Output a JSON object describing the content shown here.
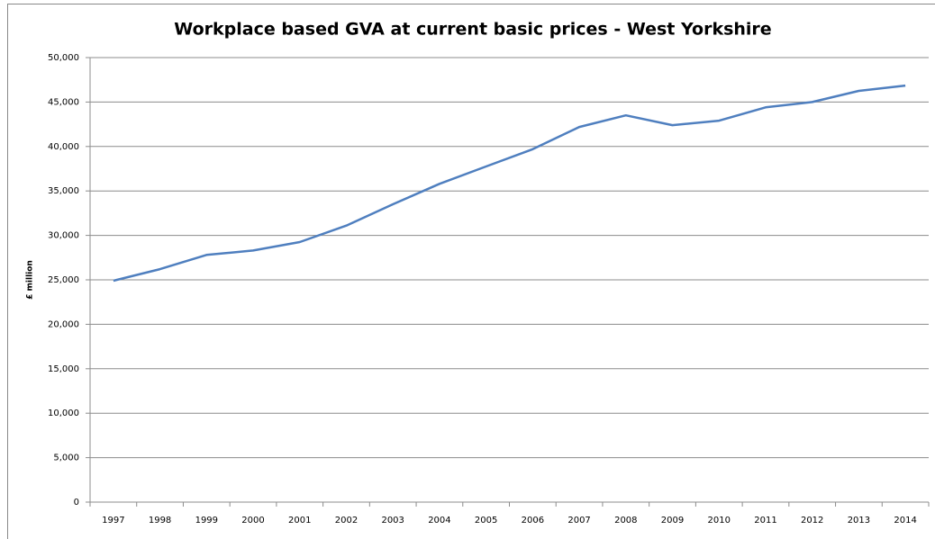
{
  "chart_data": {
    "type": "line",
    "title": "Workplace based GVA at current basic prices - West Yorkshire",
    "y_label": "£ million",
    "categories": [
      "1997",
      "1998",
      "1999",
      "2000",
      "2001",
      "2002",
      "2003",
      "2004",
      "2005",
      "2006",
      "2007",
      "2008",
      "2009",
      "2010",
      "2011",
      "2012",
      "2013",
      "2014"
    ],
    "series": [
      {
        "name": "West Yorkshire",
        "color": "#4f7fbf",
        "values": [
          24900,
          26200,
          27800,
          28300,
          29250,
          31100,
          33500,
          35800,
          37750,
          39700,
          42200,
          43500,
          42400,
          42900,
          44400,
          45000,
          46250,
          46850
        ]
      }
    ],
    "ylim": [
      0,
      50000
    ],
    "yticks": [
      0,
      {
        "value": 5000,
        "label": "5,000"
      },
      {
        "value": 10000,
        "label": "10,000"
      },
      {
        "value": 15000,
        "label": "15,000"
      },
      {
        "value": 20000,
        "label": "20,000"
      },
      {
        "value": 25000,
        "label": "25,000"
      },
      {
        "value": 30000,
        "label": "30,000"
      },
      {
        "value": 35000,
        "label": "35,000"
      },
      {
        "value": 40000,
        "label": "40,000"
      },
      {
        "value": 45000,
        "label": "45,000"
      },
      {
        "value": 50000,
        "label": "50,000"
      }
    ],
    "grid": true
  }
}
